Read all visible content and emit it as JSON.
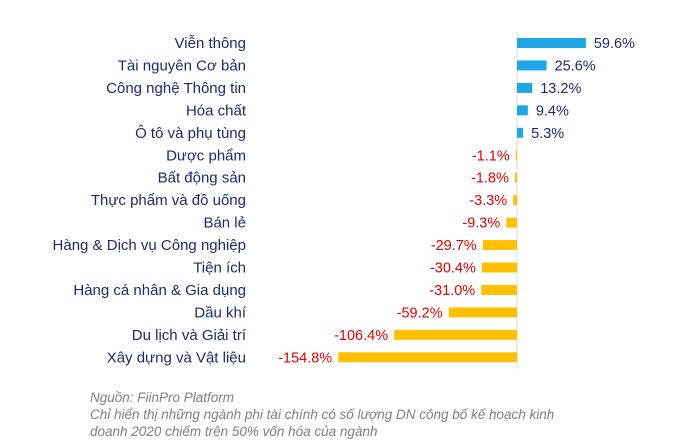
{
  "chart_data": {
    "type": "bar",
    "orientation": "horizontal",
    "categories": [
      "Viễn thông",
      "Tài nguyên Cơ bản",
      "Công nghệ Thông tin",
      "Hóa chất",
      "Ô tô và phụ tùng",
      "Dược phẩm",
      "Bất động sản",
      "Thực phẩm và đồ uống",
      "Bán lẻ",
      "Hàng & Dịch vụ Công nghiệp",
      "Tiện ích",
      "Hàng cá nhân & Gia dụng",
      "Dầu khí",
      "Du lịch và Giải trí",
      "Xây dựng và Vật liệu"
    ],
    "values": [
      59.6,
      25.6,
      13.2,
      9.4,
      5.3,
      -1.1,
      -1.8,
      -3.3,
      -9.3,
      -29.7,
      -30.4,
      -31.0,
      -59.2,
      -106.4,
      -154.8
    ],
    "value_labels": [
      "59.6%",
      "25.6%",
      "13.2%",
      "9.4%",
      "5.3%",
      "-1.1%",
      "-1.8%",
      "-3.3%",
      "-9.3%",
      "-29.7%",
      "-30.4%",
      "-31.0%",
      "-59.2%",
      "-106.4%",
      "-154.8%"
    ],
    "unit": "%",
    "colors": {
      "positive_bar": "#1ea7e6",
      "negative_bar": "#ffc000",
      "positive_label": "#1f2a6b",
      "negative_label": "#e60000",
      "category_label": "#1f2a6b"
    },
    "grid": false,
    "legend": "none"
  },
  "footnote": {
    "source": "Nguồn: FiinPro Platform",
    "note_line1": "Chỉ hiển thị những ngành phi tài chính có số lượng DN công bố kế hoạch kinh",
    "note_line2": "doanh 2020 chiếm trên 50% vốn hóa của ngành"
  }
}
